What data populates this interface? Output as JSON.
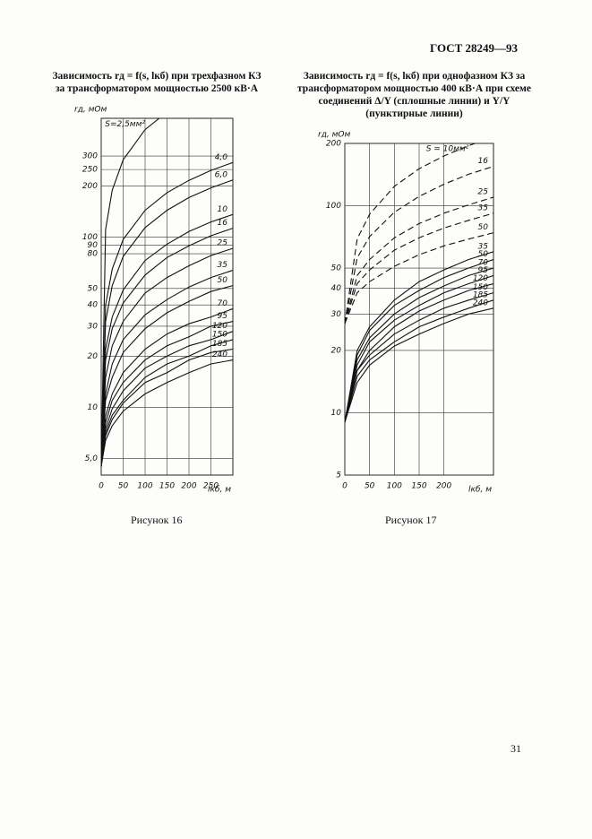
{
  "header": "ГОСТ 28249—93",
  "page_number": "31",
  "chart_data": [
    {
      "type": "line",
      "title": "Зависимость rд = f(s, lкб) при трехфазном КЗ за трансформатором мощностью 2500 кВ·А",
      "caption": "Рисунок 16",
      "y_label": "rд, мОм",
      "x_label": "lкб, м",
      "y_scale": "log",
      "grid": true,
      "xlim": [
        0,
        300
      ],
      "xticks": [
        0,
        50,
        100,
        150,
        200,
        250
      ],
      "ylim": [
        4,
        500
      ],
      "yticks": [
        {
          "value": 5,
          "label": "5,0"
        },
        10,
        20,
        30,
        40,
        50,
        80,
        90,
        100,
        200,
        250,
        300
      ],
      "x": [
        0,
        10,
        25,
        50,
        100,
        150,
        200,
        250,
        300
      ],
      "series": [
        {
          "name": "S=2,5мм²",
          "color": "#111",
          "dash": false,
          "values": [
            4.5,
            111,
            189,
            285,
            429,
            545,
            null,
            null,
            null
          ]
        },
        {
          "name": "4,0",
          "color": "#111",
          "dash": false,
          "values": [
            4.5,
            40,
            65,
            97,
            144,
            183,
            216,
            247,
            275
          ]
        },
        {
          "name": "6,0",
          "color": "#111",
          "dash": false,
          "values": [
            4.5,
            32,
            52,
            77,
            114,
            144,
            171,
            195,
            217
          ]
        },
        {
          "name": "10",
          "color": "#111",
          "dash": false,
          "values": [
            4.5,
            22,
            34,
            49,
            73,
            91,
            108,
            123,
            136
          ]
        },
        {
          "name": "16",
          "color": "#111",
          "dash": false,
          "values": [
            4.5,
            19,
            29,
            41,
            60,
            76,
            89,
            102,
            113
          ]
        },
        {
          "name": "25",
          "color": "#111",
          "dash": false,
          "values": [
            4.5,
            15,
            23,
            32,
            47,
            58,
            68,
            78,
            86
          ]
        },
        {
          "name": "35",
          "color": "#111",
          "dash": false,
          "values": [
            4.5,
            12,
            18,
            25,
            35,
            43,
            51,
            58,
            64
          ]
        },
        {
          "name": "50",
          "color": "#111",
          "dash": false,
          "values": [
            4.5,
            11,
            15,
            21,
            29,
            36,
            42,
            48,
            52
          ]
        },
        {
          "name": "70",
          "color": "#111",
          "dash": false,
          "values": [
            4.5,
            8.9,
            12,
            16,
            22,
            27,
            31,
            34,
            38
          ]
        },
        {
          "name": "95",
          "color": "#111",
          "dash": false,
          "values": [
            4.5,
            8.1,
            11,
            14,
            19,
            23,
            26,
            30,
            32
          ]
        },
        {
          "name": "120",
          "color": "#111",
          "dash": false,
          "values": [
            4.5,
            7.5,
            9.8,
            12.5,
            17,
            20,
            23,
            25,
            28
          ]
        },
        {
          "name": "150",
          "color": "#111",
          "dash": false,
          "values": [
            4.5,
            7.1,
            9,
            11,
            15,
            18,
            20,
            23,
            25
          ]
        },
        {
          "name": "185",
          "color": "#111",
          "dash": false,
          "values": [
            4.5,
            6.8,
            8.5,
            10.6,
            14,
            16,
            19,
            21,
            22
          ]
        },
        {
          "name": "240",
          "color": "#111",
          "dash": false,
          "values": [
            4.5,
            6.4,
            7.8,
            9.5,
            12,
            14,
            16,
            18,
            19
          ]
        }
      ]
    },
    {
      "type": "line",
      "title": "Зависимость rд = f(s, lкб) при однофазном КЗ за трансформатором мощностью 400 кВ·А при схеме соединений Δ/Y (сплошные линии) и Y/Y (пунктирные линии)",
      "caption": "Рисунок 17",
      "y_label": "rд, мОм",
      "x_label": "lкб, м",
      "y_scale": "log",
      "grid": true,
      "xlim": [
        0,
        300
      ],
      "xticks": [
        0,
        50,
        100,
        150,
        200
      ],
      "ylim": [
        5,
        200
      ],
      "yticks": [
        5,
        10,
        20,
        30,
        40,
        50,
        100,
        200
      ],
      "x": [
        0,
        25,
        50,
        100,
        150,
        200,
        250,
        300
      ],
      "series": [
        {
          "name": "S = 10мм²",
          "color": "#111",
          "dash": true,
          "values": [
            27,
            69,
            91,
            124,
            151,
            174,
            195,
            215
          ]
        },
        {
          "name": "16",
          "color": "#111",
          "dash": true,
          "values": [
            27,
            56,
            71,
            93,
            111,
            127,
            142,
            155
          ]
        },
        {
          "name": "25",
          "color": "#111",
          "dash": true,
          "values": [
            27,
            46,
            55,
            70,
            82,
            92,
            101,
            110
          ]
        },
        {
          "name": "35",
          "color": "#111",
          "dash": true,
          "values": [
            27,
            42,
            49,
            61,
            70,
            78,
            85,
            92
          ]
        },
        {
          "name": "50",
          "color": "#111",
          "dash": true,
          "values": [
            27,
            38,
            43,
            51,
            58,
            64,
            69,
            74
          ]
        },
        {
          "name": "35",
          "color": "#111",
          "dash": false,
          "values": [
            9,
            20,
            26,
            35,
            43,
            49,
            55,
            60
          ]
        },
        {
          "name": "50",
          "color": "#111",
          "dash": false,
          "values": [
            9,
            19,
            25,
            33,
            39,
            45,
            50,
            55
          ]
        },
        {
          "name": "70",
          "color": "#111",
          "dash": false,
          "values": [
            9,
            18,
            23,
            30,
            36,
            41,
            46,
            50
          ]
        },
        {
          "name": "95",
          "color": "#111",
          "dash": false,
          "values": [
            9,
            17,
            22,
            28,
            33,
            38,
            42,
            46
          ]
        },
        {
          "name": "120",
          "color": "#111",
          "dash": false,
          "values": [
            9,
            16,
            20,
            26,
            31,
            35,
            39,
            42
          ]
        },
        {
          "name": "150",
          "color": "#111",
          "dash": false,
          "values": [
            9,
            16,
            19,
            24,
            28,
            32,
            35,
            38
          ]
        },
        {
          "name": "185",
          "color": "#111",
          "dash": false,
          "values": [
            9,
            15,
            18,
            22,
            26,
            29,
            32,
            35
          ]
        },
        {
          "name": "240",
          "color": "#111",
          "dash": false,
          "values": [
            9,
            14,
            17,
            21,
            24,
            27,
            30,
            32
          ]
        }
      ]
    }
  ]
}
